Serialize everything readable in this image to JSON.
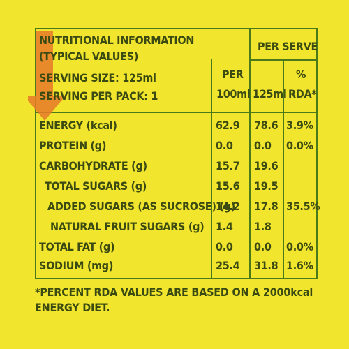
{
  "header": {
    "title_line1": "NUTRITIONAL INFORMATION",
    "title_line2": "(TYPICAL VALUES)",
    "serving_size": "SERVING SIZE: 125ml",
    "serving_per_pack": "SERVING PER PACK: 1",
    "per_serve": "PER SERVE",
    "col_per": "PER",
    "col_100ml": "100ml",
    "col_125ml": "125ml",
    "col_pct": "%",
    "col_rda": "RDA*"
  },
  "rows": [
    {
      "name": "ENERGY (kcal)",
      "per100": "62.9",
      "per125": "78.6",
      "rda": "3.9%"
    },
    {
      "name": "PROTEIN (g)",
      "per100": "0.0",
      "per125": "0.0",
      "rda": "0.0%"
    },
    {
      "name": "CARBOHYDRATE (g)",
      "per100": "15.7",
      "per125": "19.6",
      "rda": ""
    },
    {
      "name": "TOTAL SUGARS (g)",
      "per100": "15.6",
      "per125": "19.5",
      "rda": ""
    },
    {
      "name": "ADDED SUGARS (AS SUCROSE) (g)",
      "per100": "14.2",
      "per125": "17.8",
      "rda": "35.5%"
    },
    {
      "name": "NATURAL FRUIT SUGARS (g)",
      "per100": "1.4",
      "per125": "1.8",
      "rda": ""
    },
    {
      "name": "TOTAL FAT (g)",
      "per100": "0.0",
      "per125": "0.0",
      "rda": "0.0%"
    },
    {
      "name": "SODIUM (mg)",
      "per100": "25.4",
      "per125": "31.8",
      "rda": "1.6%"
    }
  ],
  "footnote": "*PERCENT RDA VALUES ARE BASED ON A 2000kcal ENERGY DIET.",
  "colors": {
    "background": "#f1e52d",
    "text": "#3a4a12",
    "border": "#4a7a1a",
    "arrow": "#e87a2a"
  }
}
